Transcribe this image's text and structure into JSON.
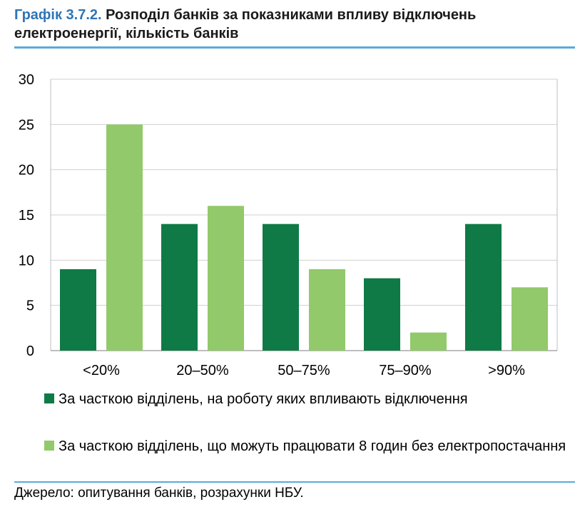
{
  "title": {
    "number": "Графік 3.7.2.",
    "text": "Розподіл банків за показниками впливу відключень електроенергії, кількість банків"
  },
  "source": "Джерело: опитування банків, розрахунки НБУ.",
  "colors": {
    "dark_green": "#0f7a46",
    "light_green": "#92c96a",
    "grid": "#d0d0d0",
    "rule": "#5aa9dc"
  },
  "chart_data": {
    "type": "bar",
    "categories": [
      "<20%",
      "20–50%",
      "50–75%",
      "75–90%",
      ">90%"
    ],
    "series": [
      {
        "name": "За часткою відділень, на роботу яких впливають відключення",
        "color": "#0f7a46",
        "values": [
          9,
          14,
          14,
          8,
          14
        ]
      },
      {
        "name": "За часткою відділень, що можуть працювати 8 годин без електропостачання",
        "color": "#92c96a",
        "values": [
          25,
          16,
          9,
          2,
          7
        ]
      }
    ],
    "ylim": [
      0,
      30
    ],
    "yticks": [
      0,
      5,
      10,
      15,
      20,
      25,
      30
    ],
    "grid": true,
    "legend_position": "bottom"
  }
}
